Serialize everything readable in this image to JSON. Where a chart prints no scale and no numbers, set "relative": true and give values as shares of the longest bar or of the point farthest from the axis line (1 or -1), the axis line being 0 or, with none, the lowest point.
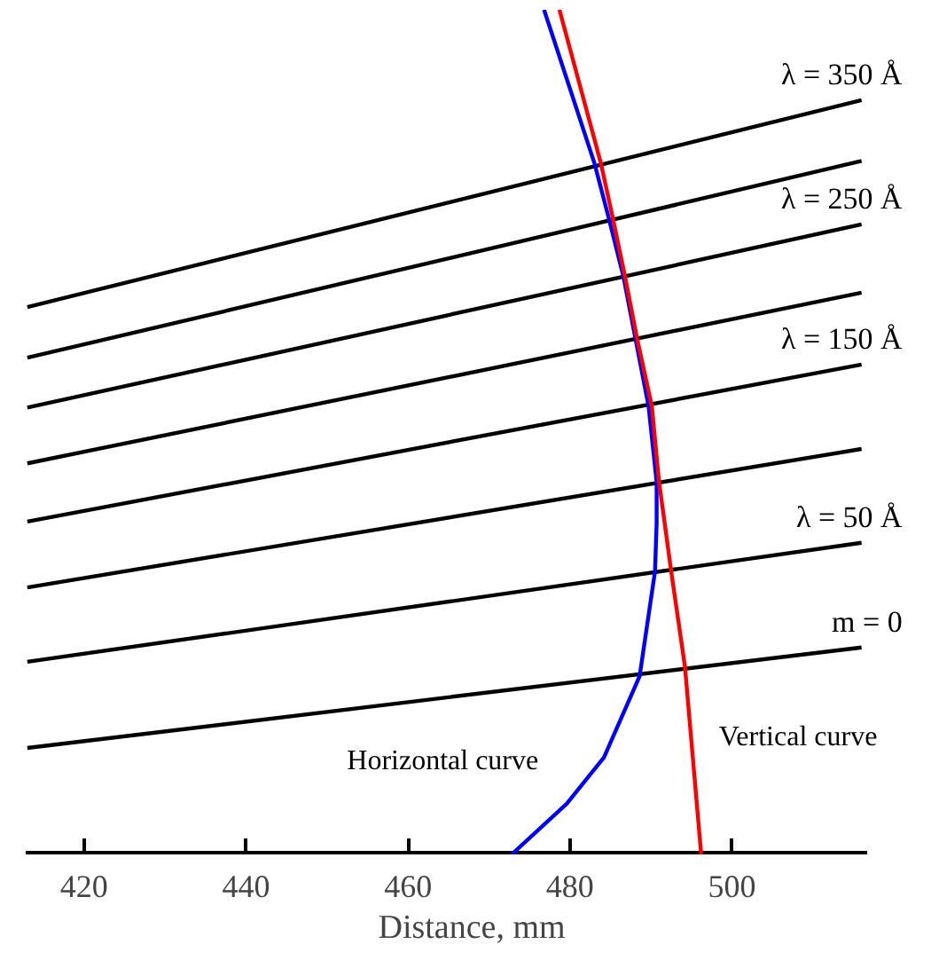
{
  "chart_data": {
    "type": "line",
    "relative": true,
    "xlabel": "Distance, mm",
    "xlim": [
      412.8,
      516.7
    ],
    "xticks": [
      420,
      440,
      460,
      480,
      500
    ],
    "grid": false,
    "marker": "none",
    "line_style": "solid",
    "series": [
      {
        "name": "m = 0",
        "color": "#000000",
        "x": [
          413,
          516
        ],
        "values": [
          0.126,
          0.245
        ]
      },
      {
        "name": "λ = 50 Å",
        "color": "#000000",
        "x": [
          413,
          516
        ],
        "values": [
          0.228,
          0.369
        ]
      },
      {
        "color": "#000000",
        "x": [
          413,
          516
        ],
        "values": [
          0.316,
          0.48
        ]
      },
      {
        "name": "λ = 150 Å",
        "color": "#000000",
        "x": [
          413,
          516
        ],
        "values": [
          0.394,
          0.58
        ]
      },
      {
        "color": "#000000",
        "x": [
          413,
          516
        ],
        "values": [
          0.463,
          0.665
        ]
      },
      {
        "name": "λ = 250 Å",
        "color": "#000000",
        "x": [
          413,
          516
        ],
        "values": [
          0.529,
          0.746
        ]
      },
      {
        "color": "#000000",
        "x": [
          413,
          516
        ],
        "values": [
          0.588,
          0.821
        ]
      },
      {
        "name": "λ = 350 Å",
        "color": "#000000",
        "x": [
          413,
          516
        ],
        "values": [
          0.648,
          0.893
        ]
      },
      {
        "name": "Horizontal curve",
        "color": "#0000ff",
        "x": [
          476.8,
          483.0,
          484.8,
          486.6,
          488.1,
          489.7,
          490.7,
          490.7,
          490.5,
          488.6,
          484.2,
          479.6,
          472.8
        ],
        "values": [
          1.0,
          0.819,
          0.753,
          0.684,
          0.61,
          0.531,
          0.441,
          0.392,
          0.335,
          0.211,
          0.115,
          0.06,
          0
        ]
      },
      {
        "name": "Vertical curve",
        "color": "#ff0000",
        "x": [
          478.7,
          483.8,
          485.3,
          486.8,
          488.3,
          490.1,
          491.0,
          492.5,
          494.2,
          496.2
        ],
        "values": [
          1.0,
          0.819,
          0.753,
          0.684,
          0.61,
          0.531,
          0.441,
          0.335,
          0.222,
          0
        ]
      }
    ]
  }
}
